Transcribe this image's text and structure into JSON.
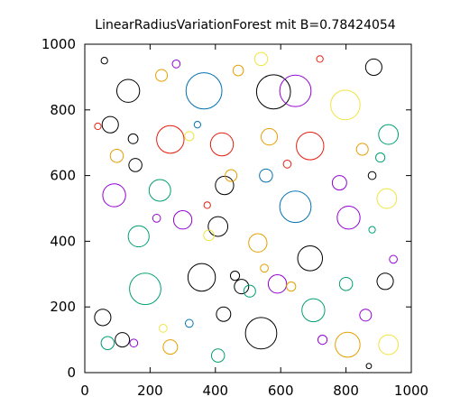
{
  "chart_data": {
    "type": "scatter",
    "title": "LinearRadiusVariationForest mit B=0.78424054",
    "xlabel": "",
    "ylabel": "",
    "xlim": [
      0,
      1000
    ],
    "ylim": [
      0,
      1000
    ],
    "xticks": [
      "0",
      "200",
      "400",
      "600",
      "800",
      "1000"
    ],
    "yticks": [
      "0",
      "200",
      "400",
      "600",
      "800",
      "1000"
    ],
    "grid": false,
    "legend": "none",
    "marker": "circle outlines, radius in data units",
    "palette": {
      "purple": "#9400d3",
      "teal": "#009e73",
      "blue": "#0072b2",
      "orange": "#e69f00",
      "yellow": "#f0e442",
      "black": "#000000",
      "red": "#e51e10"
    },
    "circles": [
      {
        "x": 365,
        "y": 858,
        "r": 55,
        "color": "blue"
      },
      {
        "x": 578,
        "y": 855,
        "r": 52,
        "color": "black"
      },
      {
        "x": 645,
        "y": 858,
        "r": 48,
        "color": "purple"
      },
      {
        "x": 798,
        "y": 815,
        "r": 45,
        "color": "yellow"
      },
      {
        "x": 133,
        "y": 858,
        "r": 35,
        "color": "black"
      },
      {
        "x": 885,
        "y": 930,
        "r": 25,
        "color": "black"
      },
      {
        "x": 930,
        "y": 725,
        "r": 30,
        "color": "teal"
      },
      {
        "x": 262,
        "y": 710,
        "r": 42,
        "color": "red"
      },
      {
        "x": 420,
        "y": 695,
        "r": 35,
        "color": "red"
      },
      {
        "x": 690,
        "y": 690,
        "r": 42,
        "color": "red"
      },
      {
        "x": 565,
        "y": 718,
        "r": 25,
        "color": "orange"
      },
      {
        "x": 78,
        "y": 755,
        "r": 25,
        "color": "black"
      },
      {
        "x": 148,
        "y": 712,
        "r": 15,
        "color": "black"
      },
      {
        "x": 98,
        "y": 660,
        "r": 20,
        "color": "orange"
      },
      {
        "x": 155,
        "y": 632,
        "r": 20,
        "color": "black"
      },
      {
        "x": 90,
        "y": 540,
        "r": 35,
        "color": "purple"
      },
      {
        "x": 230,
        "y": 555,
        "r": 33,
        "color": "teal"
      },
      {
        "x": 428,
        "y": 570,
        "r": 28,
        "color": "black"
      },
      {
        "x": 645,
        "y": 505,
        "r": 48,
        "color": "blue"
      },
      {
        "x": 808,
        "y": 472,
        "r": 35,
        "color": "purple"
      },
      {
        "x": 925,
        "y": 530,
        "r": 30,
        "color": "yellow"
      },
      {
        "x": 780,
        "y": 578,
        "r": 22,
        "color": "purple"
      },
      {
        "x": 408,
        "y": 445,
        "r": 30,
        "color": "black"
      },
      {
        "x": 300,
        "y": 465,
        "r": 28,
        "color": "purple"
      },
      {
        "x": 165,
        "y": 415,
        "r": 32,
        "color": "teal"
      },
      {
        "x": 530,
        "y": 395,
        "r": 28,
        "color": "orange"
      },
      {
        "x": 690,
        "y": 348,
        "r": 38,
        "color": "black"
      },
      {
        "x": 358,
        "y": 290,
        "r": 42,
        "color": "black"
      },
      {
        "x": 185,
        "y": 255,
        "r": 48,
        "color": "teal"
      },
      {
        "x": 448,
        "y": 600,
        "r": 18,
        "color": "orange"
      },
      {
        "x": 555,
        "y": 600,
        "r": 20,
        "color": "blue"
      },
      {
        "x": 590,
        "y": 270,
        "r": 28,
        "color": "purple"
      },
      {
        "x": 800,
        "y": 270,
        "r": 20,
        "color": "teal"
      },
      {
        "x": 920,
        "y": 278,
        "r": 25,
        "color": "black"
      },
      {
        "x": 55,
        "y": 168,
        "r": 25,
        "color": "black"
      },
      {
        "x": 70,
        "y": 90,
        "r": 20,
        "color": "teal"
      },
      {
        "x": 115,
        "y": 100,
        "r": 22,
        "color": "black"
      },
      {
        "x": 262,
        "y": 78,
        "r": 22,
        "color": "orange"
      },
      {
        "x": 408,
        "y": 52,
        "r": 20,
        "color": "teal"
      },
      {
        "x": 540,
        "y": 120,
        "r": 48,
        "color": "black"
      },
      {
        "x": 700,
        "y": 190,
        "r": 35,
        "color": "teal"
      },
      {
        "x": 805,
        "y": 85,
        "r": 38,
        "color": "orange"
      },
      {
        "x": 930,
        "y": 85,
        "r": 30,
        "color": "yellow"
      },
      {
        "x": 425,
        "y": 178,
        "r": 22,
        "color": "black"
      },
      {
        "x": 150,
        "y": 90,
        "r": 12,
        "color": "purple"
      },
      {
        "x": 220,
        "y": 470,
        "r": 12,
        "color": "purple"
      },
      {
        "x": 480,
        "y": 262,
        "r": 22,
        "color": "black"
      },
      {
        "x": 380,
        "y": 418,
        "r": 16,
        "color": "yellow"
      },
      {
        "x": 505,
        "y": 248,
        "r": 18,
        "color": "teal"
      },
      {
        "x": 632,
        "y": 262,
        "r": 14,
        "color": "orange"
      },
      {
        "x": 728,
        "y": 100,
        "r": 14,
        "color": "purple"
      },
      {
        "x": 280,
        "y": 940,
        "r": 12,
        "color": "purple"
      },
      {
        "x": 60,
        "y": 950,
        "r": 10,
        "color": "black"
      },
      {
        "x": 470,
        "y": 920,
        "r": 16,
        "color": "orange"
      },
      {
        "x": 540,
        "y": 955,
        "r": 20,
        "color": "yellow"
      },
      {
        "x": 720,
        "y": 955,
        "r": 10,
        "color": "red"
      },
      {
        "x": 850,
        "y": 680,
        "r": 18,
        "color": "orange"
      },
      {
        "x": 905,
        "y": 655,
        "r": 14,
        "color": "teal"
      },
      {
        "x": 235,
        "y": 905,
        "r": 18,
        "color": "orange"
      },
      {
        "x": 880,
        "y": 600,
        "r": 12,
        "color": "black"
      },
      {
        "x": 550,
        "y": 318,
        "r": 12,
        "color": "orange"
      },
      {
        "x": 375,
        "y": 510,
        "r": 10,
        "color": "red"
      },
      {
        "x": 345,
        "y": 755,
        "r": 10,
        "color": "blue"
      },
      {
        "x": 240,
        "y": 135,
        "r": 12,
        "color": "yellow"
      },
      {
        "x": 320,
        "y": 150,
        "r": 12,
        "color": "blue"
      },
      {
        "x": 945,
        "y": 345,
        "r": 12,
        "color": "purple"
      },
      {
        "x": 880,
        "y": 435,
        "r": 10,
        "color": "teal"
      },
      {
        "x": 870,
        "y": 20,
        "r": 8,
        "color": "black"
      },
      {
        "x": 40,
        "y": 750,
        "r": 10,
        "color": "red"
      },
      {
        "x": 860,
        "y": 175,
        "r": 18,
        "color": "purple"
      },
      {
        "x": 460,
        "y": 295,
        "r": 14,
        "color": "black"
      },
      {
        "x": 620,
        "y": 635,
        "r": 12,
        "color": "red"
      },
      {
        "x": 320,
        "y": 720,
        "r": 14,
        "color": "yellow"
      }
    ]
  }
}
